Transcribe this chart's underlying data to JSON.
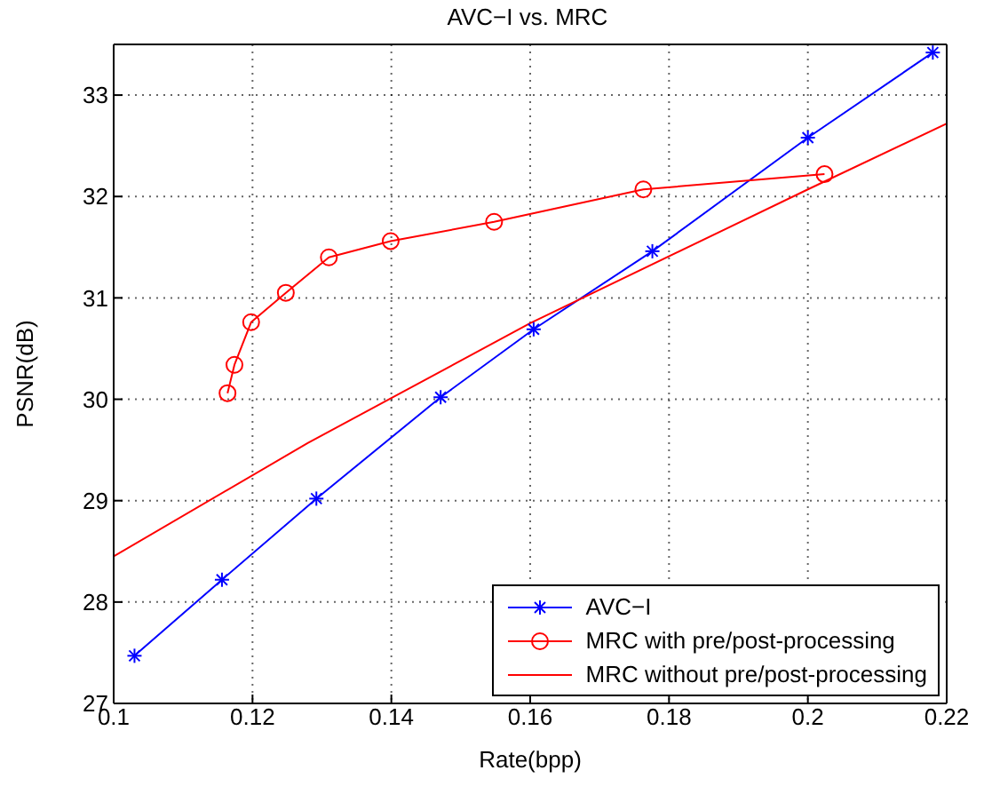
{
  "chart_data": {
    "type": "line",
    "title": "AVC−I vs. MRC",
    "xlabel": "Rate(bpp)",
    "ylabel": "PSNR(dB)",
    "xlim": [
      0.1,
      0.22
    ],
    "xticks": [
      0.1,
      0.12,
      0.14,
      0.16,
      0.18,
      0.2,
      0.22
    ],
    "ylim": [
      27,
      33.5
    ],
    "yticks": [
      27,
      28,
      29,
      30,
      31,
      32,
      33
    ],
    "grid": true,
    "legend": "bottom right",
    "line_style": "solid",
    "series": [
      {
        "name": "AVC−I",
        "color": "#0000ff",
        "marker": "cross",
        "x": [
          0.103,
          0.1156,
          0.1292,
          0.1471,
          0.1605,
          0.1776,
          0.2,
          0.218
        ],
        "values": [
          27.47,
          28.22,
          29.02,
          30.02,
          30.69,
          31.46,
          32.58,
          33.42
        ]
      },
      {
        "name": "MRC with pre/post-processing",
        "color": "#ff0000",
        "marker": "circle",
        "x": [
          0.1164,
          0.1174,
          0.1198,
          0.1248,
          0.131,
          0.1399,
          0.1548,
          0.1763,
          0.2024
        ],
        "values": [
          30.06,
          30.34,
          30.76,
          31.05,
          31.4,
          31.56,
          31.75,
          32.07,
          32.22
        ]
      },
      {
        "name": "MRC without pre/post-processing",
        "color": "#ff0000",
        "marker": "none",
        "x": [
          0.1,
          0.128,
          0.16,
          0.2,
          0.22
        ],
        "values": [
          28.45,
          29.57,
          30.75,
          32.07,
          32.72
        ]
      }
    ]
  }
}
